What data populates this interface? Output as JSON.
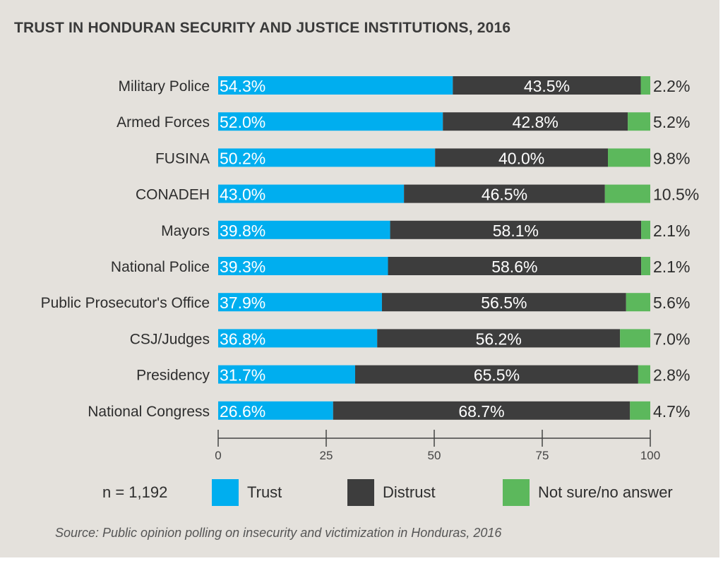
{
  "title": "TRUST IN HONDURAN SECURITY AND JUSTICE INSTITUTIONS, 2016",
  "sample_note": "n = 1,192",
  "source": "Source: Public opinion polling on insecurity and victimization in Honduras, 2016",
  "colors": {
    "trust": "#00aeef",
    "distrust": "#3d3d3d",
    "not_sure": "#5cb85c",
    "background": "#e4e1dc",
    "text": "#2d2d2d"
  },
  "legend": {
    "trust": "Trust",
    "distrust": "Distrust",
    "not_sure": "Not sure/no answer"
  },
  "chart_data": {
    "type": "bar",
    "orientation": "horizontal",
    "stacked": true,
    "title": "TRUST IN HONDURAN SECURITY AND JUSTICE INSTITUTIONS, 2016",
    "xlim": [
      0,
      100
    ],
    "x_ticks": [
      "0",
      "25",
      "50",
      "75",
      "100"
    ],
    "grid": false,
    "legend_position": "bottom",
    "categories": [
      "Military Police",
      "Armed Forces",
      "FUSINA",
      "CONADEH",
      "Mayors",
      "National Police",
      "Public Prosecutor's Office",
      "CSJ/Judges",
      "Presidency",
      "National Congress"
    ],
    "series": [
      {
        "name": "Trust",
        "values": [
          54.3,
          52.0,
          50.2,
          43.0,
          39.8,
          39.3,
          37.9,
          36.8,
          31.7,
          26.6
        ],
        "labels": [
          "54.3%",
          "52.0%",
          "50.2%",
          "43.0%",
          "39.8%",
          "39.3%",
          "37.9%",
          "36.8%",
          "31.7%",
          "26.6%"
        ]
      },
      {
        "name": "Distrust",
        "values": [
          43.5,
          42.8,
          40.0,
          46.5,
          58.1,
          58.6,
          56.5,
          56.2,
          65.5,
          68.7
        ],
        "labels": [
          "43.5%",
          "42.8%",
          "40.0%",
          "46.5%",
          "58.1%",
          "58.6%",
          "56.5%",
          "56.2%",
          "65.5%",
          "68.7%"
        ]
      },
      {
        "name": "Not sure/no answer",
        "values": [
          2.2,
          5.2,
          9.8,
          10.5,
          2.1,
          2.1,
          5.6,
          7.0,
          2.8,
          4.7
        ],
        "labels": [
          "2.2%",
          "5.2%",
          "9.8%",
          "10.5%",
          "2.1%",
          "2.1%",
          "5.6%",
          "7.0%",
          "2.8%",
          "4.7%"
        ]
      }
    ]
  }
}
